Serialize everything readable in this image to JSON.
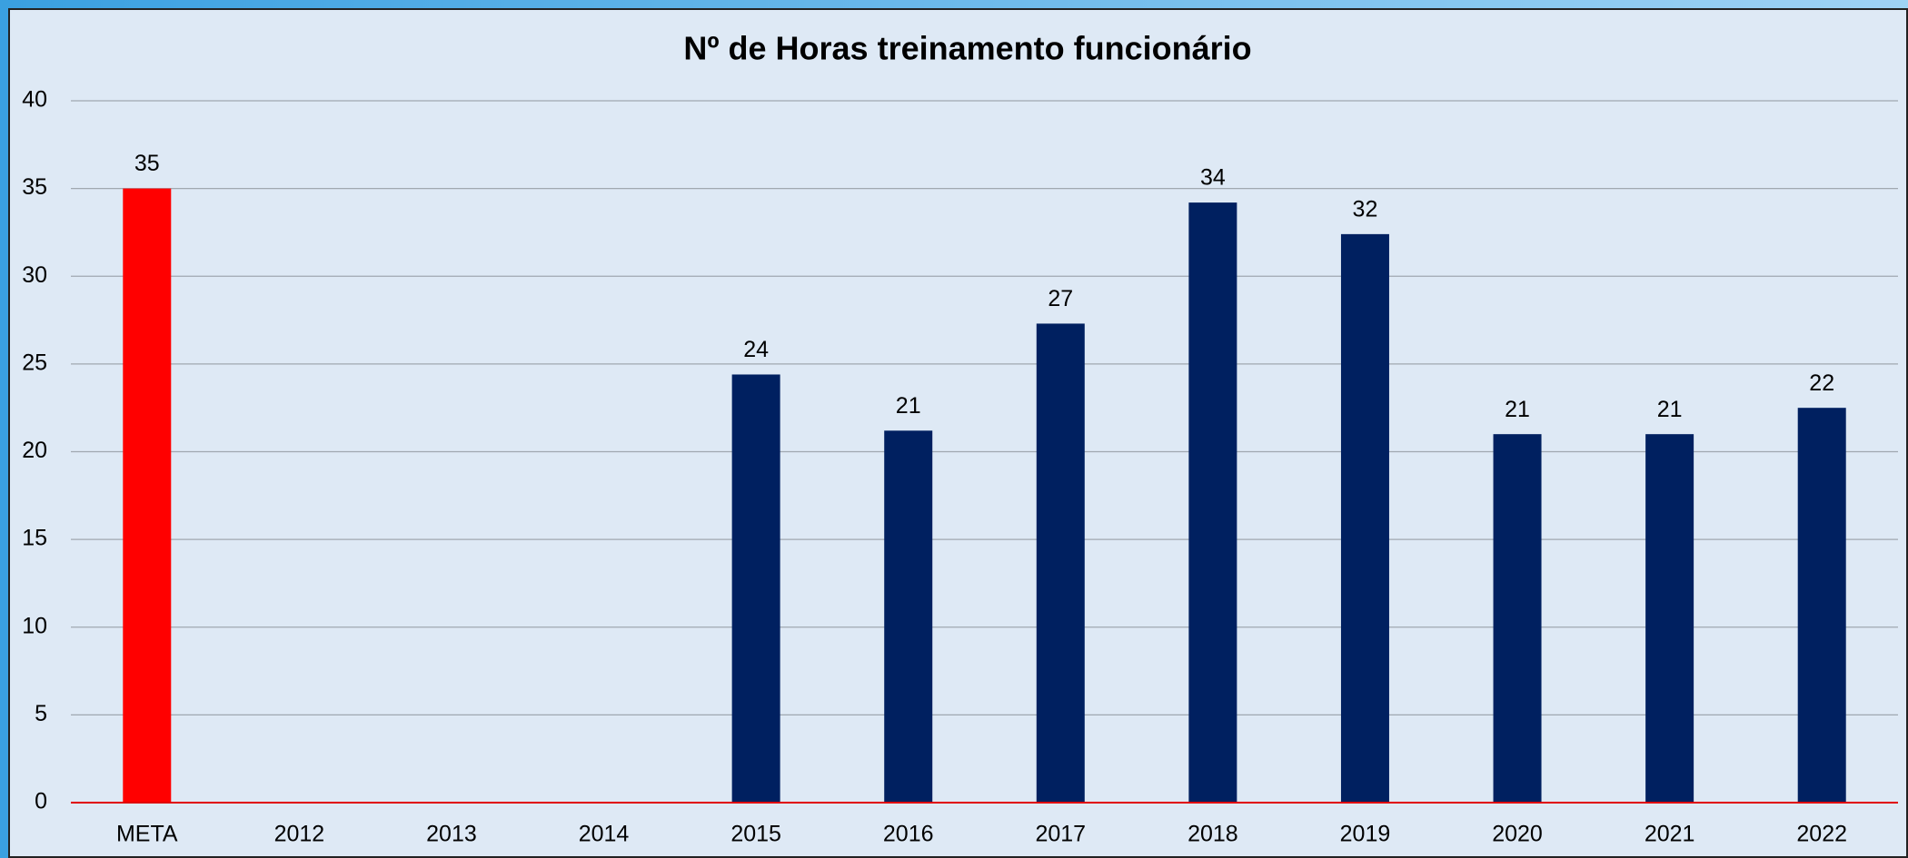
{
  "chart_data": {
    "type": "bar",
    "title": "Nº de Horas  treinamento funcionário",
    "categories": [
      "META",
      "2012",
      "2013",
      "2014",
      "2015",
      "2016",
      "2017",
      "2018",
      "2019",
      "2020",
      "2021",
      "2022"
    ],
    "values": [
      35,
      null,
      null,
      null,
      24.4,
      21.2,
      27.3,
      34.2,
      32.4,
      21,
      21,
      22.5
    ],
    "value_labels": [
      "35",
      null,
      null,
      null,
      "24",
      "21",
      "27",
      "34",
      "32",
      "21",
      "21",
      "22"
    ],
    "colors": [
      "#ff0000",
      "#002060",
      "#002060",
      "#002060",
      "#002060",
      "#002060",
      "#002060",
      "#002060",
      "#002060",
      "#002060",
      "#002060",
      "#002060"
    ],
    "ylim": [
      0,
      40
    ],
    "yticks": [
      0,
      5,
      10,
      15,
      20,
      25,
      30,
      35,
      40
    ],
    "grid": true
  }
}
